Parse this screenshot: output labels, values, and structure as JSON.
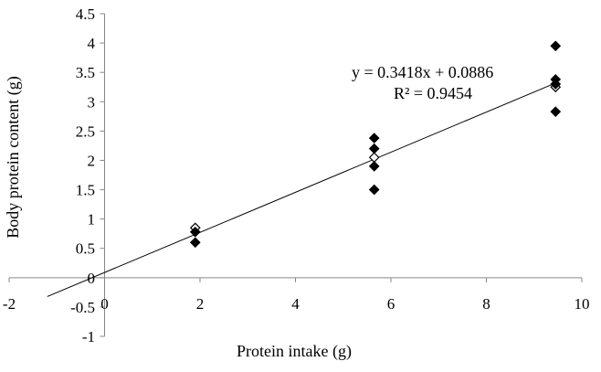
{
  "chart_data": {
    "type": "scatter",
    "title": "",
    "xlabel": "Protein intake (g)",
    "ylabel": "Body protein content (g)",
    "xlim": [
      -2,
      10
    ],
    "ylim": [
      -1,
      4.5
    ],
    "x_ticks": [
      -2,
      0,
      2,
      4,
      6,
      8,
      10
    ],
    "y_ticks": [
      -1,
      -0.5,
      0,
      0.5,
      1,
      1.5,
      2,
      2.5,
      3,
      3.5,
      4,
      4.5
    ],
    "x_tick_labels": [
      "-2",
      "0",
      "2",
      "4",
      "6",
      "8",
      "10"
    ],
    "y_tick_labels": [
      "-1",
      "-0.5",
      "0",
      "0.5",
      "1",
      "1.5",
      "2",
      "2.5",
      "3",
      "3.5",
      "4",
      "4.5"
    ],
    "grid": false,
    "marker": "diamond",
    "marker_color": "#000000",
    "series": [
      {
        "points": [
          {
            "x": 1.9,
            "y": 0.85,
            "open": true
          },
          {
            "x": 1.9,
            "y": 0.78
          },
          {
            "x": 1.9,
            "y": 0.6
          },
          {
            "x": 5.65,
            "y": 2.38
          },
          {
            "x": 5.65,
            "y": 2.2
          },
          {
            "x": 5.65,
            "y": 2.05,
            "open": true
          },
          {
            "x": 5.65,
            "y": 1.9
          },
          {
            "x": 5.65,
            "y": 1.5
          },
          {
            "x": 9.45,
            "y": 3.95
          },
          {
            "x": 9.45,
            "y": 3.38
          },
          {
            "x": 9.45,
            "y": 3.25,
            "open": true
          },
          {
            "x": 9.45,
            "y": 3.3
          },
          {
            "x": 9.45,
            "y": 2.83
          }
        ]
      }
    ],
    "trendline": {
      "slope": 0.3418,
      "intercept": 0.0886,
      "x_range": [
        -1.2,
        9.45
      ],
      "equation": "y = 0.3418x + 0.0886",
      "r2": "R² = 0.9454"
    }
  }
}
